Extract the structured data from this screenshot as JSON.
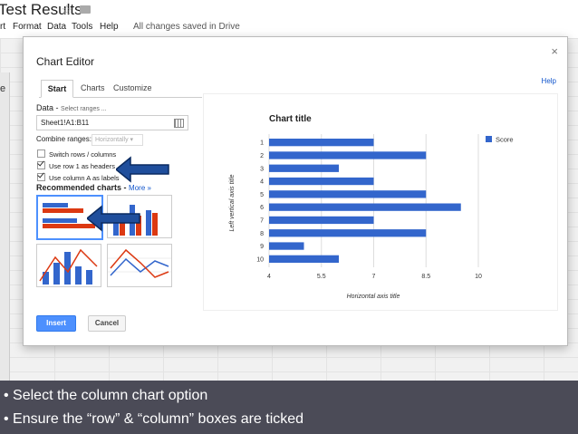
{
  "app": {
    "doc_title": "Test Results",
    "star_icon": "star-icon",
    "folder_icon": "folder-icon",
    "menu": [
      "rt",
      "Format",
      "Data",
      "Tools",
      "Help"
    ],
    "save_status": "All changes saved in Drive",
    "row_marker": "e"
  },
  "dialog": {
    "title": "Chart Editor",
    "close": "×",
    "help": "Help",
    "tabs": [
      {
        "label": "Start",
        "active": true
      },
      {
        "label": "Charts",
        "active": false
      },
      {
        "label": "Customize",
        "active": false
      }
    ],
    "data_label": "Data -",
    "data_sublabel": "Select ranges ...",
    "range_value": "Sheet1!A1:B11",
    "combine_label": "Combine ranges:",
    "combine_value": "Horizontally",
    "checkboxes": [
      {
        "label": "Switch rows / columns",
        "checked": false
      },
      {
        "label": "Use row 1 as headers",
        "checked": true
      },
      {
        "label": "Use column A as labels",
        "checked": true
      }
    ],
    "recommended_label": "Recommended charts -",
    "more_link": "More »",
    "buttons": {
      "insert": "Insert",
      "cancel": "Cancel"
    }
  },
  "chart_data": {
    "type": "bar",
    "orientation": "horizontal",
    "title": "Chart title",
    "xlabel": "Horizontal axis title",
    "ylabel": "Left vertical axis title",
    "categories": [
      "1",
      "2",
      "3",
      "4",
      "5",
      "6",
      "7",
      "8",
      "9",
      "10"
    ],
    "series": [
      {
        "name": "Score",
        "values": [
          7,
          8.5,
          6,
          7,
          8.5,
          9.5,
          7,
          8.5,
          5,
          6
        ],
        "color": "#3366cc"
      }
    ],
    "xlim": [
      4,
      10
    ],
    "xticks": [
      "4",
      "5.5",
      "7",
      "8.5",
      "10"
    ],
    "grid": true,
    "legend": "right"
  },
  "caption": {
    "line1": "Select the column chart option",
    "line2": "Ensure the “row” & “column” boxes are ticked"
  },
  "colors": {
    "bar": "#3366cc",
    "accent": "#4d90fe",
    "red": "#dc3912",
    "caption_bg": "#4b4b57"
  }
}
